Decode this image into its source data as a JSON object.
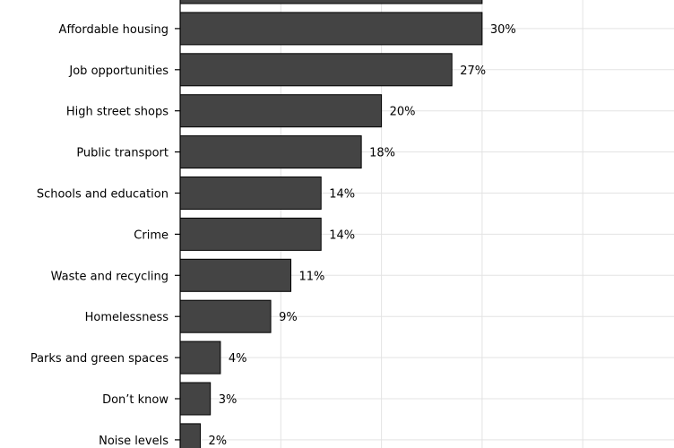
{
  "chart_data": {
    "type": "bar",
    "orientation": "horizontal",
    "categories": [
      "",
      "Affordable housing",
      "Job opportunities",
      "High street shops",
      "Public transport",
      "Schools and education",
      "Crime",
      "Waste and recycling",
      "Homelessness",
      "Parks and green spaces",
      "Don’t know",
      "Noise levels"
    ],
    "values": [
      30,
      30,
      27,
      20,
      18,
      14,
      14,
      11,
      9,
      4,
      3,
      2
    ],
    "value_labels": [
      "",
      "30%",
      "27%",
      "20%",
      "18%",
      "14%",
      "14%",
      "11%",
      "9%",
      "4%",
      "3%",
      "2%"
    ],
    "xlim": [
      0,
      50
    ],
    "grid": true,
    "bar_color": "#444444"
  }
}
